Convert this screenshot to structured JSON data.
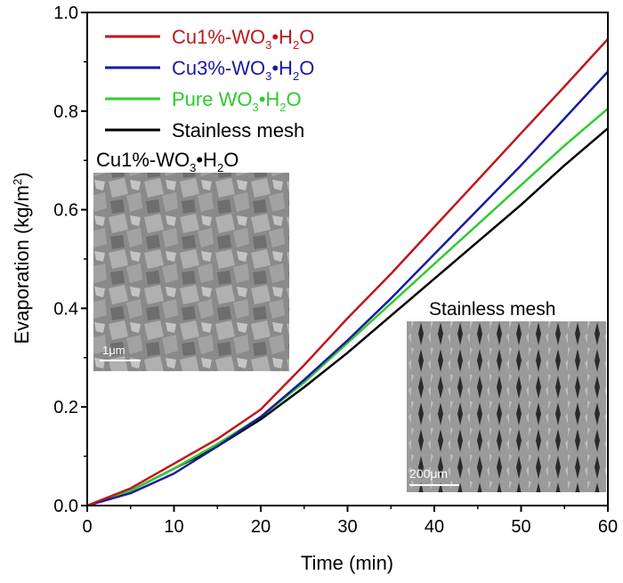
{
  "chart_data": {
    "type": "line",
    "title": "",
    "xlabel": "Time (min)",
    "ylabel": "Evaporation (kg/m²)",
    "xlim": [
      0,
      60
    ],
    "ylim": [
      0,
      1.0
    ],
    "xticks": [
      0,
      10,
      20,
      30,
      40,
      50,
      60
    ],
    "xtick_labels": [
      "0",
      "10",
      "20",
      "30",
      "40",
      "50",
      "60"
    ],
    "yticks": [
      0,
      0.2,
      0.4,
      0.6,
      0.8,
      1.0
    ],
    "ytick_labels": [
      "0.0",
      "0.2",
      "0.4",
      "0.6",
      "0.8",
      "1.0"
    ],
    "grid": false,
    "legend_position": "top-left",
    "x": [
      0,
      5,
      10,
      15,
      20,
      25,
      30,
      35,
      40,
      45,
      50,
      55,
      60
    ],
    "series": [
      {
        "name": "Cu1%-WO3•H2O",
        "label_main": "Cu1%-WO",
        "sub1": "3",
        "label_mid": "•H",
        "sub2": "2",
        "label_end": "O",
        "color": "#c0171c",
        "values": [
          0,
          0.035,
          0.085,
          0.135,
          0.195,
          0.285,
          0.38,
          0.47,
          0.565,
          0.66,
          0.755,
          0.85,
          0.946
        ]
      },
      {
        "name": "Cu3%-WO3•H2O",
        "label_main": "Cu3%-WO",
        "sub1": "3",
        "label_mid": "•H",
        "sub2": "2",
        "label_end": "O",
        "color": "#1a1aa0",
        "values": [
          0,
          0.025,
          0.065,
          0.12,
          0.18,
          0.255,
          0.335,
          0.42,
          0.51,
          0.6,
          0.69,
          0.785,
          0.88
        ]
      },
      {
        "name": "Pure WO3•H2O",
        "label_main": "Pure WO",
        "sub1": "3",
        "label_mid": "•H",
        "sub2": "2",
        "label_end": "O",
        "color": "#2ecc2e",
        "values": [
          0,
          0.03,
          0.075,
          0.125,
          0.18,
          0.25,
          0.33,
          0.41,
          0.49,
          0.57,
          0.65,
          0.73,
          0.805
        ]
      },
      {
        "name": "Stainless mesh",
        "label_main": "Stainless mesh",
        "sub1": "",
        "label_mid": "",
        "sub2": "",
        "label_end": "",
        "color": "#000000",
        "values": [
          0,
          0.03,
          0.075,
          0.12,
          0.175,
          0.24,
          0.31,
          0.385,
          0.46,
          0.535,
          0.61,
          0.69,
          0.765
        ]
      }
    ],
    "annotations": {
      "inset1_title": {
        "main": "Cu1%-WO",
        "sub1": "3",
        "mid": "•H",
        "sub2": "2",
        "end": "O"
      },
      "inset1_scale": "1μm",
      "inset2_title": "Stainless mesh",
      "inset2_scale": "200μm"
    }
  }
}
